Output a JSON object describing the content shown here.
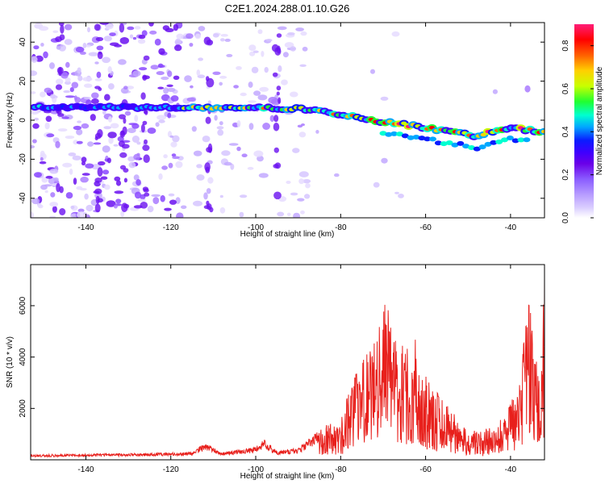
{
  "title": "C2E1.2024.288.01.10.G26",
  "colors": {
    "snr_line": "#e8201c",
    "colormap": [
      "#ffffff",
      "#dcd0ff",
      "#b79cff",
      "#8a5cff",
      "#6a00e8",
      "#3d00ff",
      "#0a1cff",
      "#00a8ff",
      "#00ffd0",
      "#20ff30",
      "#c8ff00",
      "#ffd000",
      "#ff6000",
      "#ff0000",
      "#ff1e78"
    ]
  },
  "chart_data": [
    {
      "type": "heatmap",
      "xlabel": "Height of straight line (km)",
      "ylabel": "Frequency (Hz)",
      "xlim": [
        -153,
        -32
      ],
      "ylim": [
        -50,
        50
      ],
      "xticks": [
        -140,
        -120,
        -100,
        -80,
        -60,
        -40
      ],
      "yticks": [
        -40,
        -20,
        0,
        20,
        40
      ],
      "grid": false,
      "colorbar": {
        "label": "Normalized spectral amplitude",
        "range": [
          0,
          0.9
        ],
        "ticks": [
          "0.0",
          "0.2",
          "0.4",
          "0.6",
          "0.8"
        ]
      },
      "ridge": [
        {
          "x": -152,
          "y": 6.5
        },
        {
          "x": -120,
          "y": 6.5
        },
        {
          "x": -90,
          "y": 6.0
        },
        {
          "x": -85,
          "y": 4.5
        },
        {
          "x": -80,
          "y": 3.0
        },
        {
          "x": -70,
          "y": -1.0
        },
        {
          "x": -62,
          "y": -3.0
        },
        {
          "x": -55,
          "y": -6.0
        },
        {
          "x": -48,
          "y": -8.0
        },
        {
          "x": -40,
          "y": -3.5
        },
        {
          "x": -32,
          "y": -6.5
        }
      ]
    },
    {
      "type": "line",
      "xlabel": "Height of straight line (km)",
      "ylabel": "SNR (10 * v/v)",
      "xlim": [
        -153,
        -32
      ],
      "ylim": [
        0,
        7600
      ],
      "xticks": [
        -140,
        -120,
        -100,
        -80,
        -60,
        -40
      ],
      "yticks": [
        2000,
        4000,
        6000
      ],
      "grid": false,
      "envelope": [
        {
          "x": -153,
          "y": 200
        },
        {
          "x": -130,
          "y": 250
        },
        {
          "x": -115,
          "y": 300
        },
        {
          "x": -112,
          "y": 650
        },
        {
          "x": -108,
          "y": 300
        },
        {
          "x": -100,
          "y": 500
        },
        {
          "x": -98,
          "y": 800
        },
        {
          "x": -95,
          "y": 350
        },
        {
          "x": -90,
          "y": 450
        },
        {
          "x": -87,
          "y": 900
        },
        {
          "x": -84,
          "y": 1350
        },
        {
          "x": -80,
          "y": 1700
        },
        {
          "x": -76,
          "y": 3600
        },
        {
          "x": -73,
          "y": 4500
        },
        {
          "x": -69,
          "y": 6450
        },
        {
          "x": -67,
          "y": 5000
        },
        {
          "x": -65,
          "y": 4300
        },
        {
          "x": -63,
          "y": 5000
        },
        {
          "x": -61,
          "y": 4000
        },
        {
          "x": -59,
          "y": 3000
        },
        {
          "x": -55,
          "y": 2200
        },
        {
          "x": -52,
          "y": 1500
        },
        {
          "x": -48,
          "y": 1100
        },
        {
          "x": -44,
          "y": 1300
        },
        {
          "x": -41,
          "y": 1800
        },
        {
          "x": -38,
          "y": 3000
        },
        {
          "x": -36,
          "y": 6300
        },
        {
          "x": -34,
          "y": 5000
        },
        {
          "x": -33,
          "y": 2500
        },
        {
          "x": -32,
          "y": 7600
        }
      ]
    }
  ]
}
